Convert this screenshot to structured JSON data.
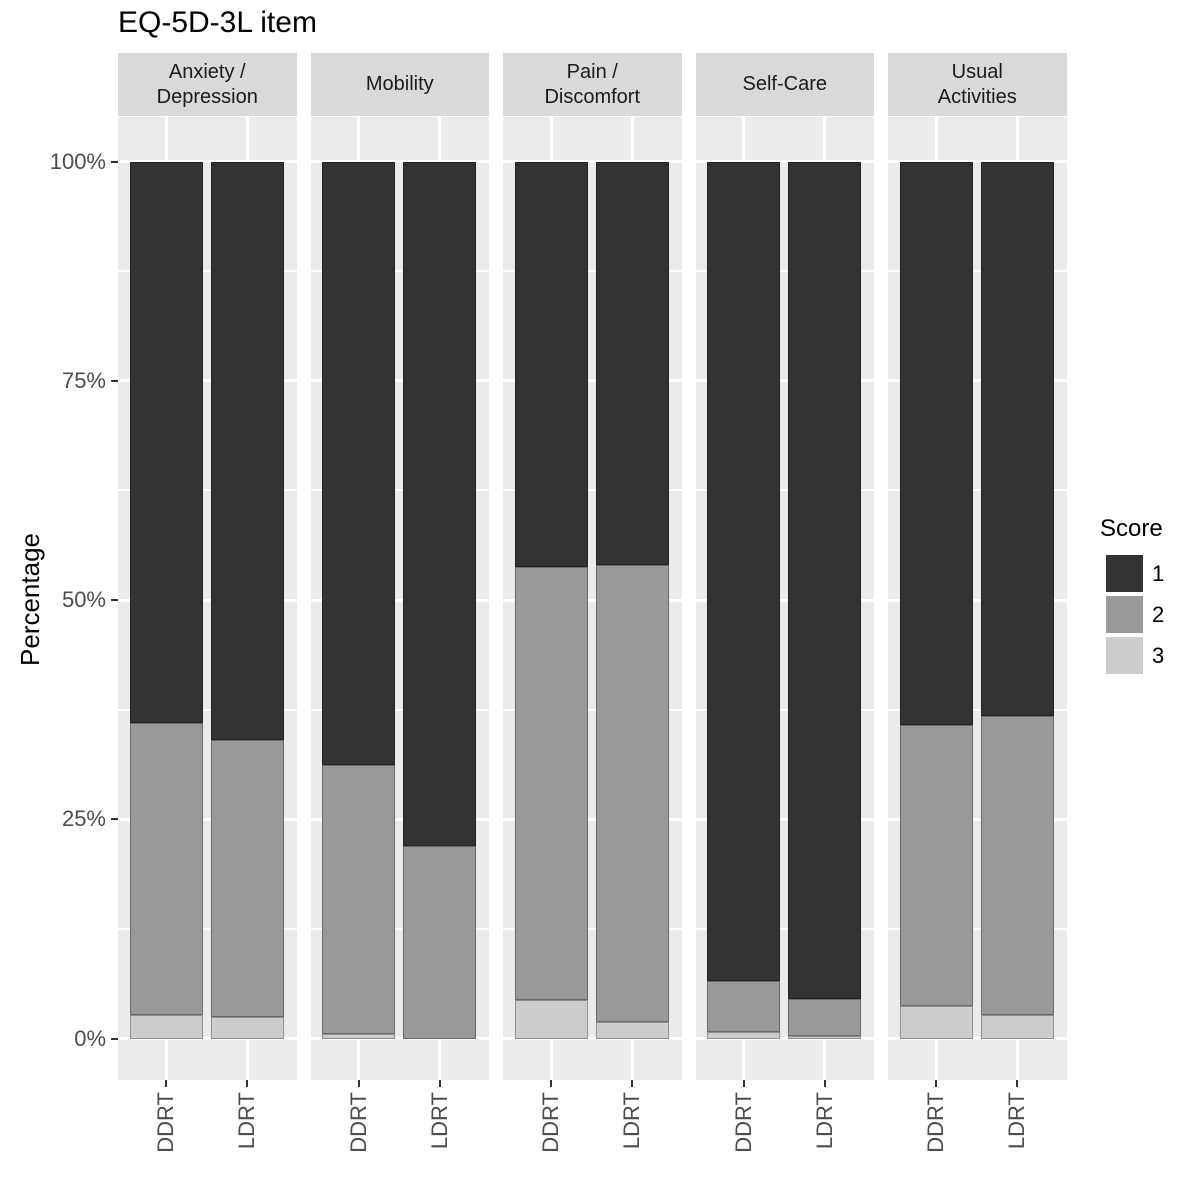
{
  "title": "EQ-5D-3L item",
  "y_axis": {
    "title": "Percentage",
    "tick_labels": [
      "100%",
      "75%",
      "50%",
      "25%",
      "0%"
    ],
    "tick_values": [
      100,
      75,
      50,
      25,
      0
    ]
  },
  "legend": {
    "title": "Score",
    "entries": [
      {
        "label": "1",
        "color": "#333333"
      },
      {
        "label": "2",
        "color": "#999999"
      },
      {
        "label": "3",
        "color": "#cccccc"
      }
    ]
  },
  "colors": {
    "panel_background": "#ebebeb",
    "strip_background": "#d9d9d9",
    "gridline": "#ffffff",
    "axis_text": "#4d4d4d",
    "tick_mark": "#333333",
    "score_1": "#333333",
    "score_2": "#999999",
    "score_3": "#cccccc"
  },
  "chart_data": {
    "type": "bar",
    "stacked": true,
    "percent_stacked": true,
    "title": "EQ-5D-3L item",
    "ylabel": "Percentage",
    "ylim": [
      0,
      100
    ],
    "y_major_breaks": [
      0,
      25,
      50,
      75,
      100
    ],
    "y_minor_breaks": [
      12.5,
      37.5,
      62.5,
      87.5
    ],
    "categories": [
      "DDRT",
      "LDRT"
    ],
    "score_levels": [
      "1",
      "2",
      "3"
    ],
    "legend_title": "Score",
    "legend_position": "right",
    "series_colors": {
      "1": "#333333",
      "2": "#999999",
      "3": "#cccccc"
    },
    "facets": [
      {
        "label": "Anxiety /\nDepression",
        "values": {
          "DDRT": [
            64.0,
            33.3,
            2.7
          ],
          "LDRT": [
            66.0,
            31.5,
            2.5
          ]
        }
      },
      {
        "label": "Mobility",
        "values": {
          "DDRT": [
            68.8,
            30.7,
            0.5
          ],
          "LDRT": [
            78.0,
            22.0,
            0.0
          ]
        }
      },
      {
        "label": "Pain /\nDiscomfort",
        "values": {
          "DDRT": [
            46.2,
            49.4,
            4.4
          ],
          "LDRT": [
            46.0,
            52.1,
            1.9
          ]
        }
      },
      {
        "label": "Self-Care",
        "values": {
          "DDRT": [
            93.4,
            5.9,
            0.7
          ],
          "LDRT": [
            95.5,
            4.2,
            0.3
          ]
        }
      },
      {
        "label": "Usual\nActivities",
        "values": {
          "DDRT": [
            64.2,
            32.1,
            3.7
          ],
          "LDRT": [
            63.2,
            34.1,
            2.7
          ]
        }
      }
    ]
  }
}
